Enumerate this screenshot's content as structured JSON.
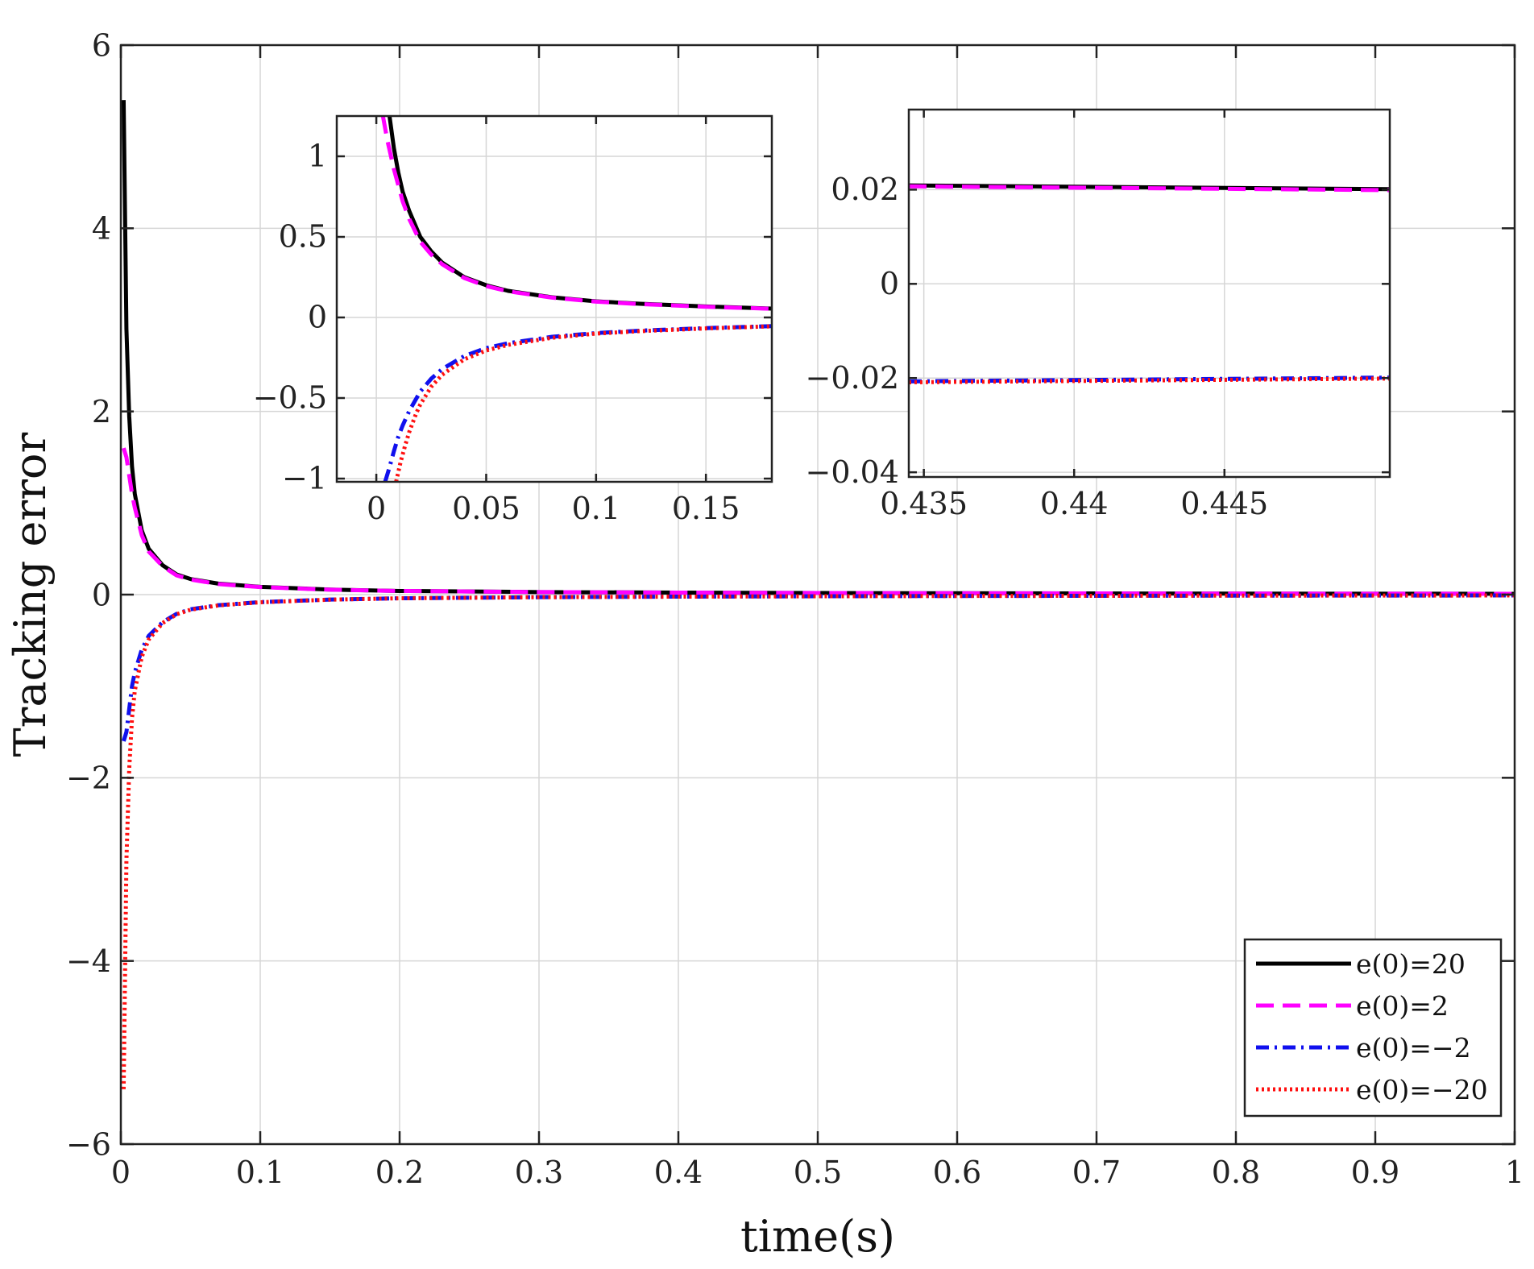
{
  "chart_data": [
    {
      "id": "main",
      "type": "line",
      "title": "",
      "xlabel": "time(s)",
      "ylabel": "Tracking error",
      "xlim": [
        0,
        1
      ],
      "ylim": [
        -6,
        6
      ],
      "xticks": [
        0,
        0.1,
        0.2,
        0.3,
        0.4,
        0.5,
        0.6,
        0.7,
        0.8,
        0.9,
        1
      ],
      "xtick_labels": [
        "0",
        "0.1",
        "0.2",
        "0.3",
        "0.4",
        "0.5",
        "0.6",
        "0.7",
        "0.8",
        "0.9",
        "1"
      ],
      "yticks": [
        -6,
        -4,
        -2,
        0,
        2,
        4,
        6
      ],
      "ytick_labels": [
        "−6",
        "−4",
        "−2",
        "0",
        "2",
        "4",
        "6"
      ],
      "grid": true,
      "legend_position": "bottom-right",
      "series": [
        {
          "name": "e(0)=20",
          "color": "#000000",
          "style": "solid",
          "x": [
            0.002,
            0.004,
            0.006,
            0.008,
            0.01,
            0.015,
            0.02,
            0.03,
            0.04,
            0.05,
            0.07,
            0.1,
            0.15,
            0.2,
            0.3,
            0.4,
            0.5,
            0.6,
            0.7,
            0.8,
            0.9,
            1.0
          ],
          "y": [
            5.4,
            2.9,
            1.95,
            1.4,
            1.1,
            0.7,
            0.5,
            0.32,
            0.22,
            0.17,
            0.12,
            0.085,
            0.055,
            0.04,
            0.028,
            0.022,
            0.018,
            0.015,
            0.013,
            0.011,
            0.01,
            0.009
          ]
        },
        {
          "name": "e(0)=2",
          "color": "#ff00ff",
          "style": "dashed",
          "x": [
            0.002,
            0.004,
            0.006,
            0.008,
            0.01,
            0.015,
            0.02,
            0.03,
            0.04,
            0.05,
            0.07,
            0.1,
            0.15,
            0.2,
            0.3,
            0.4,
            0.5,
            0.6,
            0.7,
            0.8,
            0.9,
            1.0
          ],
          "y": [
            1.6,
            1.5,
            1.3,
            1.1,
            0.95,
            0.65,
            0.47,
            0.31,
            0.21,
            0.165,
            0.115,
            0.082,
            0.054,
            0.04,
            0.028,
            0.022,
            0.018,
            0.015,
            0.013,
            0.011,
            0.01,
            0.009
          ]
        },
        {
          "name": "e(0)=−2",
          "color": "#1010ee",
          "style": "dashdot",
          "x": [
            0.002,
            0.004,
            0.006,
            0.008,
            0.01,
            0.015,
            0.02,
            0.03,
            0.04,
            0.05,
            0.07,
            0.1,
            0.15,
            0.2,
            0.3,
            0.4,
            0.5,
            0.6,
            0.7,
            0.8,
            0.9,
            1.0
          ],
          "y": [
            -1.6,
            -1.5,
            -1.25,
            -1.0,
            -0.85,
            -0.6,
            -0.45,
            -0.3,
            -0.21,
            -0.16,
            -0.115,
            -0.082,
            -0.054,
            -0.04,
            -0.028,
            -0.022,
            -0.018,
            -0.015,
            -0.013,
            -0.011,
            -0.01,
            -0.009
          ]
        },
        {
          "name": "e(0)=−20",
          "color": "#ff1010",
          "style": "dotted",
          "x": [
            0.002,
            0.004,
            0.006,
            0.008,
            0.01,
            0.015,
            0.02,
            0.03,
            0.04,
            0.05,
            0.07,
            0.1,
            0.15,
            0.2,
            0.3,
            0.4,
            0.5,
            0.6,
            0.7,
            0.8,
            0.9,
            1.0
          ],
          "y": [
            -5.4,
            -2.9,
            -1.9,
            -1.35,
            -1.05,
            -0.68,
            -0.49,
            -0.31,
            -0.215,
            -0.165,
            -0.118,
            -0.084,
            -0.055,
            -0.04,
            -0.028,
            -0.022,
            -0.018,
            -0.015,
            -0.013,
            -0.011,
            -0.01,
            -0.009
          ]
        }
      ]
    },
    {
      "id": "inset1",
      "type": "line",
      "xlim": [
        -0.018,
        0.18
      ],
      "ylim": [
        -1.02,
        1.25
      ],
      "xticks": [
        0,
        0.05,
        0.1,
        0.15
      ],
      "xtick_labels": [
        "0",
        "0.05",
        "0.1",
        "0.15"
      ],
      "yticks": [
        -1,
        -0.5,
        0,
        0.5,
        1
      ],
      "ytick_labels": [
        "−1",
        "−0.5",
        "0",
        "0.5",
        "1"
      ],
      "grid": true,
      "series": [
        {
          "name": "e(0)=20",
          "color": "#000000",
          "style": "solid",
          "x": [
            0.006,
            0.008,
            0.01,
            0.012,
            0.015,
            0.02,
            0.025,
            0.03,
            0.04,
            0.05,
            0.06,
            0.08,
            0.1,
            0.12,
            0.15,
            0.18
          ],
          "y": [
            1.25,
            1.05,
            0.9,
            0.78,
            0.66,
            0.5,
            0.41,
            0.34,
            0.25,
            0.2,
            0.165,
            0.125,
            0.1,
            0.085,
            0.068,
            0.055
          ]
        },
        {
          "name": "e(0)=2",
          "color": "#ff00ff",
          "style": "dashed",
          "x": [
            0.003,
            0.005,
            0.008,
            0.01,
            0.012,
            0.015,
            0.02,
            0.025,
            0.03,
            0.04,
            0.05,
            0.06,
            0.08,
            0.1,
            0.12,
            0.15,
            0.18
          ],
          "y": [
            1.25,
            1.1,
            0.92,
            0.82,
            0.72,
            0.61,
            0.47,
            0.39,
            0.33,
            0.245,
            0.195,
            0.162,
            0.123,
            0.098,
            0.083,
            0.066,
            0.054
          ]
        },
        {
          "name": "e(0)=−2",
          "color": "#1010ee",
          "style": "dashdot",
          "x": [
            0.004,
            0.006,
            0.008,
            0.01,
            0.012,
            0.015,
            0.02,
            0.025,
            0.03,
            0.04,
            0.05,
            0.06,
            0.08,
            0.1,
            0.12,
            0.15,
            0.18
          ],
          "y": [
            -1.02,
            -0.93,
            -0.83,
            -0.74,
            -0.67,
            -0.58,
            -0.46,
            -0.38,
            -0.32,
            -0.24,
            -0.19,
            -0.16,
            -0.12,
            -0.097,
            -0.082,
            -0.066,
            -0.054
          ]
        },
        {
          "name": "e(0)=−20",
          "color": "#ff1010",
          "style": "dotted",
          "x": [
            0.009,
            0.011,
            0.013,
            0.015,
            0.018,
            0.02,
            0.025,
            0.03,
            0.04,
            0.05,
            0.06,
            0.08,
            0.1,
            0.12,
            0.15,
            0.18
          ],
          "y": [
            -1.02,
            -0.9,
            -0.8,
            -0.71,
            -0.6,
            -0.54,
            -0.43,
            -0.355,
            -0.26,
            -0.205,
            -0.17,
            -0.126,
            -0.1,
            -0.085,
            -0.068,
            -0.055
          ]
        }
      ]
    },
    {
      "id": "inset2",
      "type": "line",
      "xlim": [
        0.4345,
        0.4505
      ],
      "ylim": [
        -0.041,
        0.037
      ],
      "xticks": [
        0.435,
        0.44,
        0.445
      ],
      "xtick_labels": [
        "0.435",
        "0.44",
        "0.445"
      ],
      "yticks": [
        -0.04,
        -0.02,
        0,
        0.02
      ],
      "ytick_labels": [
        "−0.04",
        "−0.02",
        "0",
        "0.02"
      ],
      "grid": true,
      "series": [
        {
          "name": "e(0)=20",
          "color": "#000000",
          "style": "solid",
          "x": [
            0.4345,
            0.4505
          ],
          "y": [
            0.0209,
            0.0201
          ]
        },
        {
          "name": "e(0)=2",
          "color": "#ff00ff",
          "style": "dashed",
          "x": [
            0.4345,
            0.4505
          ],
          "y": [
            0.0207,
            0.0199
          ]
        },
        {
          "name": "e(0)=−2",
          "color": "#1010ee",
          "style": "dashdot",
          "x": [
            0.4345,
            0.4505
          ],
          "y": [
            -0.0207,
            -0.0199
          ]
        },
        {
          "name": "e(0)=−20",
          "color": "#ff1010",
          "style": "dotted",
          "x": [
            0.4345,
            0.4505
          ],
          "y": [
            -0.0209,
            -0.0201
          ]
        }
      ]
    }
  ]
}
